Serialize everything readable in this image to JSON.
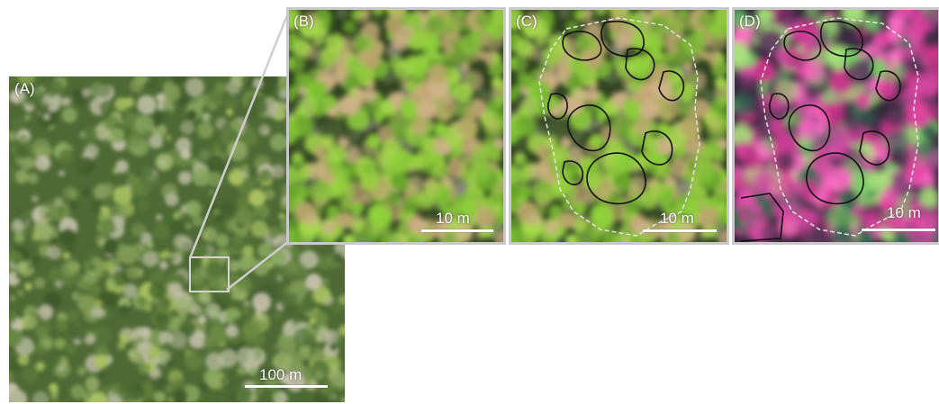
{
  "panels": {
    "a": {
      "label": "(A)",
      "scalebar": "100 m"
    },
    "b": {
      "label": "(B)",
      "scalebar": "10 m"
    },
    "c": {
      "label": "(C)",
      "scalebar": "10 m"
    },
    "d": {
      "label": "(D)",
      "scalebar": "10 m"
    }
  },
  "colors": {
    "frame": "#c9c9c9",
    "outline_dashed": "#e6e6e6",
    "outline_solid": "#111111"
  }
}
